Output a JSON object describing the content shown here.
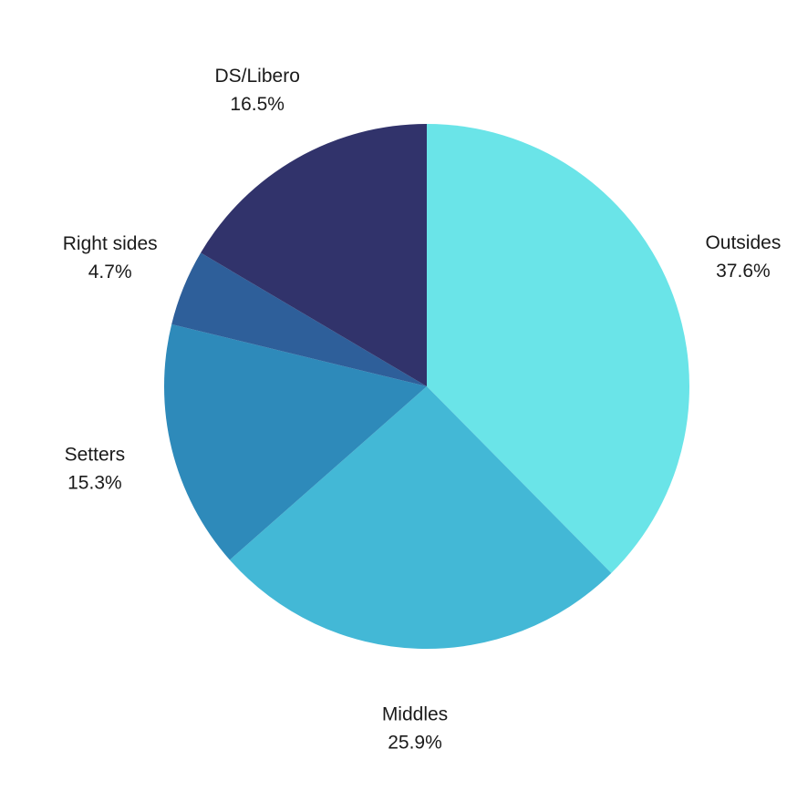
{
  "chart_data": {
    "type": "pie",
    "title": "",
    "start_angle": "top",
    "direction": "clockwise",
    "slices": [
      {
        "label": "Outsides",
        "value": 37.6,
        "value_label": "37.6%",
        "color": "#6ae4e8"
      },
      {
        "label": "Middles",
        "value": 25.9,
        "value_label": "25.9%",
        "color": "#43b8d6"
      },
      {
        "label": "Setters",
        "value": 15.3,
        "value_label": "15.3%",
        "color": "#2e8aba"
      },
      {
        "label": "Right sides",
        "value": 4.7,
        "value_label": "4.7%",
        "color": "#2e5f9a"
      },
      {
        "label": "DS/Libero",
        "value": 16.5,
        "value_label": "16.5%",
        "color": "#31336b"
      }
    ]
  }
}
